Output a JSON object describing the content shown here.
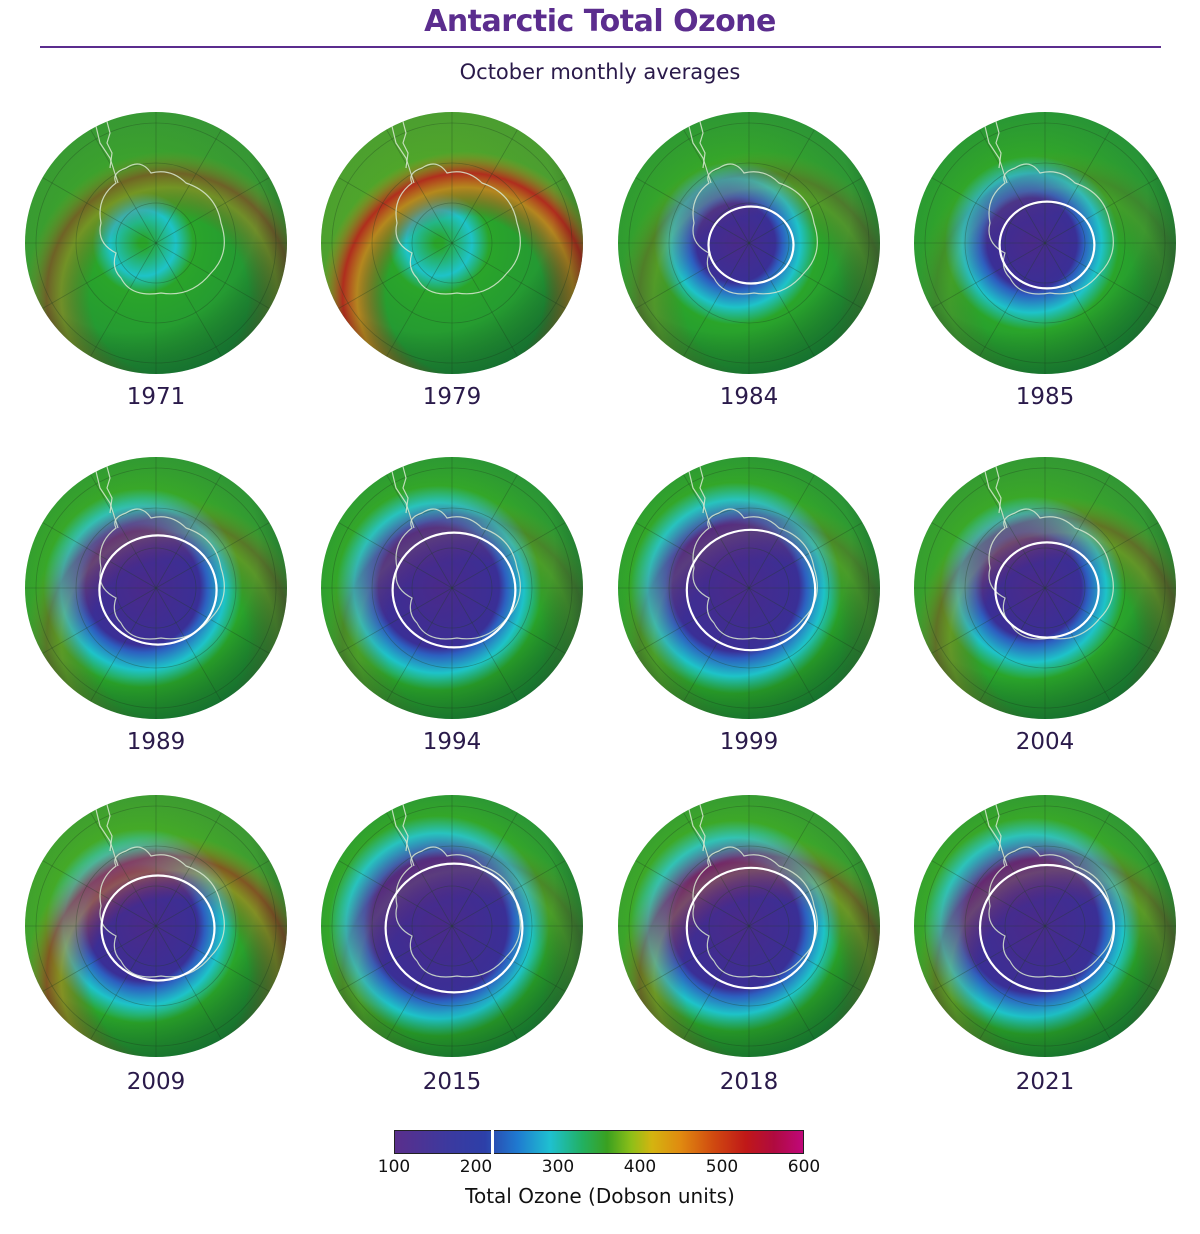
{
  "header": {
    "title": "Antarctic Total Ozone",
    "subtitle": "October monthly averages"
  },
  "panels": [
    {
      "year": "1971",
      "hole": 0.0,
      "cyan": 0.1,
      "ring": 0.45
    },
    {
      "year": "1979",
      "hole": 0.0,
      "cyan": 0.3,
      "ring": 0.85
    },
    {
      "year": "1984",
      "hole": 0.55,
      "cyan": 0.6,
      "ring": 0.25
    },
    {
      "year": "1985",
      "hole": 0.62,
      "cyan": 0.55,
      "ring": 0.15
    },
    {
      "year": "1989",
      "hole": 0.78,
      "cyan": 0.6,
      "ring": 0.3
    },
    {
      "year": "1994",
      "hole": 0.82,
      "cyan": 0.55,
      "ring": 0.2
    },
    {
      "year": "1999",
      "hole": 0.86,
      "cyan": 0.55,
      "ring": 0.2
    },
    {
      "year": "2004",
      "hole": 0.68,
      "cyan": 0.55,
      "ring": 0.35
    },
    {
      "year": "2009",
      "hole": 0.75,
      "cyan": 0.55,
      "ring": 0.55
    },
    {
      "year": "2015",
      "hole": 0.92,
      "cyan": 0.55,
      "ring": 0.2
    },
    {
      "year": "2018",
      "hole": 0.86,
      "cyan": 0.55,
      "ring": 0.4
    },
    {
      "year": "2021",
      "hole": 0.9,
      "cyan": 0.55,
      "ring": 0.3
    }
  ],
  "colorbar": {
    "ticks": [
      "100",
      "200",
      "300",
      "400",
      "500",
      "600"
    ],
    "min": 100,
    "max": 600,
    "marker_value": 220,
    "label": "Total Ozone (Dobson units)",
    "colors": {
      "hole": "#3a2f96",
      "hole_center": "#4a2a8a",
      "cyan": "#1ec3c8",
      "green": "#2aa52a",
      "yellow": "#c8c01a",
      "orange": "#e0801a",
      "red": "#c81a1a",
      "contour": "#ffffff"
    }
  }
}
